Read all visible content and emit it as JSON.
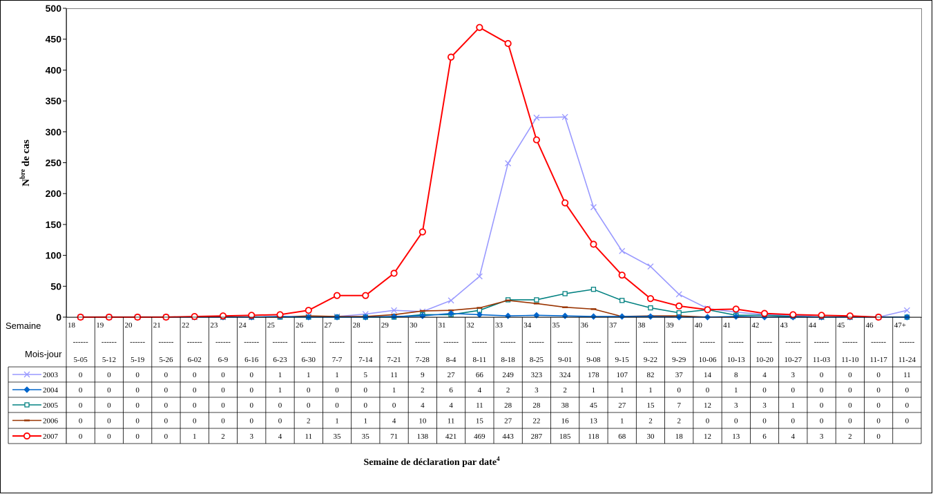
{
  "chart_data": {
    "type": "line",
    "ylabel_main": "N",
    "ylabel_sup": "bre",
    "ylabel_rest": " de cas",
    "xlabel_main": "Semaine de déclaration par date",
    "xlabel_sup": "4",
    "ylim": [
      0,
      500
    ],
    "yticks": [
      0,
      50,
      100,
      150,
      200,
      250,
      300,
      350,
      400,
      450,
      500
    ],
    "grid": false,
    "row_label_week": "Semaine",
    "row_label_date": "Mois-jour",
    "week_numbers": [
      "18",
      "19",
      "20",
      "21",
      "22",
      "23",
      "24",
      "25",
      "26",
      "27",
      "28",
      "29",
      "30",
      "31",
      "32",
      "33",
      "34",
      "35",
      "36",
      "37",
      "38",
      "39",
      "40",
      "41",
      "42",
      "43",
      "44",
      "45",
      "46",
      "47+"
    ],
    "separator": "------",
    "categories": [
      "5-05",
      "5-12",
      "5-19",
      "5-26",
      "6-02",
      "6-9",
      "6-16",
      "6-23",
      "6-30",
      "7-7",
      "7-14",
      "7-21",
      "7-28",
      "8-4",
      "8-11",
      "8-18",
      "8-25",
      "9-01",
      "9-08",
      "9-15",
      "9-22",
      "9-29",
      "10-06",
      "10-13",
      "10-20",
      "10-27",
      "11-03",
      "11-10",
      "11-17",
      "11-24"
    ],
    "series": [
      {
        "name": "2003",
        "color": "#9999ff",
        "marker": "x",
        "values": [
          0,
          0,
          0,
          0,
          0,
          0,
          0,
          1,
          1,
          1,
          5,
          11,
          9,
          27,
          66,
          249,
          323,
          324,
          178,
          107,
          82,
          37,
          14,
          8,
          4,
          3,
          0,
          0,
          0,
          11
        ]
      },
      {
        "name": "2004",
        "color": "#0066cc",
        "marker": "diamond",
        "values": [
          0,
          0,
          0,
          0,
          0,
          0,
          0,
          1,
          0,
          0,
          0,
          1,
          2,
          6,
          4,
          2,
          3,
          2,
          1,
          1,
          1,
          0,
          0,
          1,
          0,
          0,
          0,
          0,
          0,
          0
        ]
      },
      {
        "name": "2005",
        "color": "#008080",
        "marker": "square",
        "values": [
          0,
          0,
          0,
          0,
          0,
          0,
          0,
          0,
          0,
          0,
          0,
          0,
          4,
          4,
          11,
          28,
          28,
          38,
          45,
          27,
          15,
          7,
          12,
          3,
          3,
          1,
          0,
          0,
          0,
          0
        ]
      },
      {
        "name": "2006",
        "color": "#993300",
        "marker": "dash",
        "values": [
          0,
          0,
          0,
          0,
          0,
          0,
          0,
          0,
          2,
          1,
          1,
          4,
          10,
          11,
          15,
          27,
          22,
          16,
          13,
          1,
          2,
          2,
          0,
          0,
          0,
          0,
          0,
          0,
          0,
          0
        ]
      },
      {
        "name": "2007",
        "color": "#ff0000",
        "marker": "circle",
        "values": [
          0,
          0,
          0,
          0,
          1,
          2,
          3,
          4,
          11,
          35,
          35,
          71,
          138,
          421,
          469,
          443,
          287,
          185,
          118,
          68,
          30,
          18,
          12,
          13,
          6,
          4,
          3,
          2,
          0,
          null
        ]
      }
    ]
  }
}
